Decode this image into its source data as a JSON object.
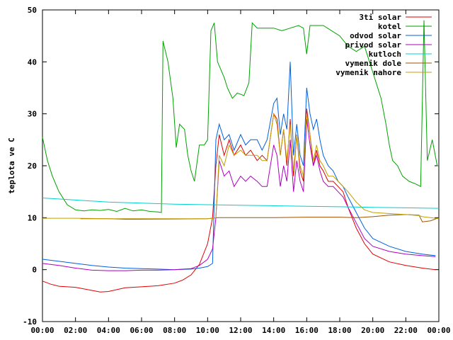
{
  "chart_data": {
    "type": "line",
    "ylabel": "teplota ve C",
    "ylim": [
      -10,
      50
    ],
    "xlim": [
      0,
      24
    ],
    "yticks": [
      "-10",
      "0",
      "10",
      "20",
      "30",
      "40",
      "50"
    ],
    "xticks": [
      "00:00",
      "02:00",
      "04:00",
      "06:00",
      "08:00",
      "10:00",
      "12:00",
      "14:00",
      "16:00",
      "18:00",
      "20:00",
      "22:00",
      "00:00"
    ],
    "grid": false,
    "legend_position": "top-right",
    "series": [
      {
        "name": "3ti solar",
        "color": "#e00000",
        "points": [
          [
            0,
            -2.2
          ],
          [
            0.5,
            -2.8
          ],
          [
            1,
            -3.2
          ],
          [
            2,
            -3.4
          ],
          [
            3,
            -4.0
          ],
          [
            3.5,
            -4.3
          ],
          [
            4,
            -4.2
          ],
          [
            5,
            -3.5
          ],
          [
            6,
            -3.3
          ],
          [
            7,
            -3.1
          ],
          [
            8,
            -2.6
          ],
          [
            8.5,
            -2
          ],
          [
            9,
            -1
          ],
          [
            9.5,
            1
          ],
          [
            10,
            5
          ],
          [
            10.3,
            10
          ],
          [
            10.5,
            20
          ],
          [
            10.7,
            26
          ],
          [
            11,
            22
          ],
          [
            11.3,
            25
          ],
          [
            11.6,
            22
          ],
          [
            12,
            24
          ],
          [
            12.3,
            22
          ],
          [
            12.6,
            23
          ],
          [
            13,
            21
          ],
          [
            13.3,
            22
          ],
          [
            13.6,
            21
          ],
          [
            14,
            30
          ],
          [
            14.2,
            29
          ],
          [
            14.4,
            22
          ],
          [
            14.6,
            27
          ],
          [
            14.8,
            20
          ],
          [
            15,
            29
          ],
          [
            15.2,
            18
          ],
          [
            15.4,
            26
          ],
          [
            15.6,
            19
          ],
          [
            15.8,
            17
          ],
          [
            16,
            31
          ],
          [
            16.2,
            26
          ],
          [
            16.4,
            20
          ],
          [
            16.6,
            23
          ],
          [
            16.8,
            20
          ],
          [
            17,
            19
          ],
          [
            17.3,
            17
          ],
          [
            17.6,
            17
          ],
          [
            17.9,
            16
          ],
          [
            18.2,
            15
          ],
          [
            18.5,
            12
          ],
          [
            19,
            8
          ],
          [
            19.5,
            5
          ],
          [
            20,
            3
          ],
          [
            21,
            1.5
          ],
          [
            22,
            0.8
          ],
          [
            23,
            0.3
          ],
          [
            23.8,
            0
          ]
        ]
      },
      {
        "name": "kotel",
        "color": "#00a000",
        "points": [
          [
            0,
            25.5
          ],
          [
            0.3,
            21
          ],
          [
            0.6,
            18
          ],
          [
            1,
            15
          ],
          [
            1.5,
            12.5
          ],
          [
            2,
            11.5
          ],
          [
            2.5,
            11.3
          ],
          [
            3,
            11.5
          ],
          [
            3.5,
            11.4
          ],
          [
            4,
            11.6
          ],
          [
            4.5,
            11.2
          ],
          [
            5,
            11.8
          ],
          [
            5.5,
            11.3
          ],
          [
            6,
            11.5
          ],
          [
            6.5,
            11.2
          ],
          [
            7,
            11.1
          ],
          [
            7.2,
            11.0
          ],
          [
            7.3,
            44
          ],
          [
            7.6,
            40
          ],
          [
            7.9,
            33
          ],
          [
            8.1,
            23.5
          ],
          [
            8.3,
            28
          ],
          [
            8.6,
            27
          ],
          [
            8.8,
            22
          ],
          [
            9,
            19
          ],
          [
            9.2,
            17
          ],
          [
            9.5,
            24
          ],
          [
            9.8,
            24
          ],
          [
            10,
            25
          ],
          [
            10.2,
            46
          ],
          [
            10.4,
            47.5
          ],
          [
            10.6,
            40
          ],
          [
            11,
            37
          ],
          [
            11.2,
            35
          ],
          [
            11.5,
            33
          ],
          [
            11.8,
            34
          ],
          [
            12.2,
            33.5
          ],
          [
            12.5,
            36
          ],
          [
            12.7,
            47.5
          ],
          [
            13,
            46.5
          ],
          [
            13.5,
            46.5
          ],
          [
            14,
            46.5
          ],
          [
            14.5,
            46
          ],
          [
            15,
            46.5
          ],
          [
            15.5,
            47
          ],
          [
            15.8,
            46.5
          ],
          [
            16,
            41.5
          ],
          [
            16.2,
            47
          ],
          [
            17,
            47
          ],
          [
            17.5,
            46
          ],
          [
            18,
            45
          ],
          [
            18.5,
            43
          ],
          [
            19,
            42
          ],
          [
            19.5,
            43
          ],
          [
            20,
            38
          ],
          [
            20.5,
            33
          ],
          [
            20.8,
            28
          ],
          [
            21,
            24
          ],
          [
            21.2,
            21
          ],
          [
            21.5,
            20
          ],
          [
            21.8,
            18
          ],
          [
            22.2,
            17
          ],
          [
            22.6,
            16.5
          ],
          [
            22.9,
            16
          ],
          [
            23.1,
            48
          ],
          [
            23.3,
            21
          ],
          [
            23.6,
            25
          ],
          [
            23.9,
            20
          ],
          [
            24,
            20
          ]
        ]
      },
      {
        "name": "odvod solar",
        "color": "#0060e0",
        "points": [
          [
            0,
            2
          ],
          [
            1,
            1.6
          ],
          [
            2,
            1.2
          ],
          [
            3,
            0.8
          ],
          [
            4,
            0.5
          ],
          [
            5,
            0.3
          ],
          [
            6,
            0.2
          ],
          [
            7,
            0.1
          ],
          [
            8,
            0
          ],
          [
            9,
            0.1
          ],
          [
            9.5,
            0.3
          ],
          [
            10,
            0.6
          ],
          [
            10.3,
            1.2
          ],
          [
            10.5,
            25
          ],
          [
            10.7,
            28
          ],
          [
            11,
            25
          ],
          [
            11.3,
            26
          ],
          [
            11.6,
            23
          ],
          [
            12,
            26
          ],
          [
            12.3,
            24
          ],
          [
            12.6,
            25
          ],
          [
            13,
            25
          ],
          [
            13.3,
            23
          ],
          [
            13.6,
            25
          ],
          [
            14,
            32
          ],
          [
            14.2,
            33
          ],
          [
            14.4,
            26
          ],
          [
            14.6,
            30
          ],
          [
            14.8,
            27
          ],
          [
            15,
            40
          ],
          [
            15.2,
            22
          ],
          [
            15.4,
            28
          ],
          [
            15.6,
            22
          ],
          [
            15.8,
            20
          ],
          [
            16,
            35
          ],
          [
            16.2,
            30
          ],
          [
            16.4,
            27
          ],
          [
            16.6,
            29
          ],
          [
            16.8,
            25
          ],
          [
            17,
            22
          ],
          [
            17.3,
            20
          ],
          [
            17.6,
            19
          ],
          [
            17.9,
            17
          ],
          [
            18.2,
            16
          ],
          [
            18.5,
            14
          ],
          [
            19,
            11
          ],
          [
            19.5,
            8
          ],
          [
            20,
            6
          ],
          [
            21,
            4.5
          ],
          [
            22,
            3.5
          ],
          [
            23,
            3
          ],
          [
            23.8,
            2.7
          ]
        ]
      },
      {
        "name": "privod solar",
        "color": "#b000c0",
        "points": [
          [
            0,
            1.2
          ],
          [
            1,
            0.8
          ],
          [
            2,
            0.3
          ],
          [
            3,
            -0.1
          ],
          [
            4,
            -0.2
          ],
          [
            5,
            -0.2
          ],
          [
            6,
            -0.1
          ],
          [
            7,
            -0.1
          ],
          [
            8,
            0
          ],
          [
            9,
            0.2
          ],
          [
            9.5,
            0.8
          ],
          [
            10,
            2
          ],
          [
            10.3,
            4
          ],
          [
            10.5,
            10
          ],
          [
            10.7,
            21
          ],
          [
            11,
            18
          ],
          [
            11.3,
            19
          ],
          [
            11.6,
            16
          ],
          [
            12,
            18
          ],
          [
            12.3,
            17
          ],
          [
            12.6,
            18
          ],
          [
            13,
            17
          ],
          [
            13.3,
            16
          ],
          [
            13.6,
            16
          ],
          [
            14,
            24
          ],
          [
            14.2,
            22
          ],
          [
            14.4,
            16
          ],
          [
            14.6,
            20
          ],
          [
            14.8,
            17
          ],
          [
            15,
            25
          ],
          [
            15.2,
            15
          ],
          [
            15.4,
            21
          ],
          [
            15.6,
            17
          ],
          [
            15.8,
            15
          ],
          [
            16,
            29
          ],
          [
            16.2,
            24
          ],
          [
            16.4,
            20
          ],
          [
            16.6,
            22
          ],
          [
            16.8,
            19
          ],
          [
            17,
            17
          ],
          [
            17.3,
            16
          ],
          [
            17.6,
            16
          ],
          [
            17.9,
            15
          ],
          [
            18.2,
            14
          ],
          [
            18.5,
            12
          ],
          [
            19,
            9
          ],
          [
            19.5,
            6
          ],
          [
            20,
            4.5
          ],
          [
            21,
            3.5
          ],
          [
            22,
            3
          ],
          [
            23,
            2.7
          ],
          [
            23.8,
            2.5
          ]
        ]
      },
      {
        "name": "kutloch",
        "color": "#00d0d0",
        "points": [
          [
            0,
            13.8
          ],
          [
            2,
            13.4
          ],
          [
            4,
            13.0
          ],
          [
            6,
            12.8
          ],
          [
            8,
            12.6
          ],
          [
            10,
            12.5
          ],
          [
            12,
            12.4
          ],
          [
            14,
            12.3
          ],
          [
            16,
            12.2
          ],
          [
            18,
            12.1
          ],
          [
            20,
            12.0
          ],
          [
            22,
            11.9
          ],
          [
            24,
            11.8
          ]
        ]
      },
      {
        "name": "vymenik dole",
        "color": "#a05000",
        "points": [
          [
            2.3,
            9.8
          ],
          [
            3,
            9.8
          ],
          [
            4,
            9.8
          ],
          [
            5,
            9.7
          ],
          [
            5.8,
            9.7
          ],
          [
            10,
            9.8
          ],
          [
            10.6,
            10.0
          ],
          [
            12,
            10.0
          ],
          [
            14,
            10.0
          ],
          [
            16,
            10.1
          ],
          [
            18,
            10.1
          ],
          [
            19,
            10
          ],
          [
            20,
            10.2
          ],
          [
            21,
            10.5
          ],
          [
            22,
            10.6
          ],
          [
            22.8,
            10.5
          ],
          [
            23,
            9.2
          ],
          [
            23.5,
            9.4
          ],
          [
            24,
            10
          ]
        ]
      },
      {
        "name": "vymenik nahore",
        "color": "#c0a000",
        "points": [
          [
            0,
            9.9
          ],
          [
            2,
            9.9
          ],
          [
            4,
            9.8
          ],
          [
            6,
            9.8
          ],
          [
            8,
            9.8
          ],
          [
            9,
            9.8
          ],
          [
            10,
            9.8
          ],
          [
            10.3,
            9.9
          ],
          [
            10.5,
            10
          ],
          [
            10.7,
            22
          ],
          [
            11,
            20
          ],
          [
            11.3,
            24
          ],
          [
            11.6,
            22
          ],
          [
            12,
            23
          ],
          [
            12.3,
            22
          ],
          [
            12.6,
            22
          ],
          [
            13,
            22
          ],
          [
            13.3,
            21
          ],
          [
            13.6,
            21
          ],
          [
            14,
            30
          ],
          [
            14.2,
            28
          ],
          [
            14.4,
            22
          ],
          [
            14.6,
            27
          ],
          [
            14.8,
            21
          ],
          [
            15,
            28
          ],
          [
            15.2,
            19
          ],
          [
            15.4,
            26
          ],
          [
            15.6,
            20
          ],
          [
            15.8,
            18
          ],
          [
            16,
            30
          ],
          [
            16.2,
            26
          ],
          [
            16.4,
            21
          ],
          [
            16.6,
            24
          ],
          [
            16.8,
            21
          ],
          [
            17,
            20
          ],
          [
            17.3,
            18
          ],
          [
            17.6,
            18
          ],
          [
            17.9,
            17
          ],
          [
            18.2,
            16
          ],
          [
            18.5,
            15
          ],
          [
            19,
            13
          ],
          [
            19.5,
            11.5
          ],
          [
            20,
            11
          ],
          [
            21,
            10.8
          ],
          [
            22,
            10.6
          ],
          [
            22.8,
            10.4
          ],
          [
            23,
            10.2
          ],
          [
            23.5,
            10
          ],
          [
            24,
            9.8
          ]
        ]
      }
    ]
  }
}
